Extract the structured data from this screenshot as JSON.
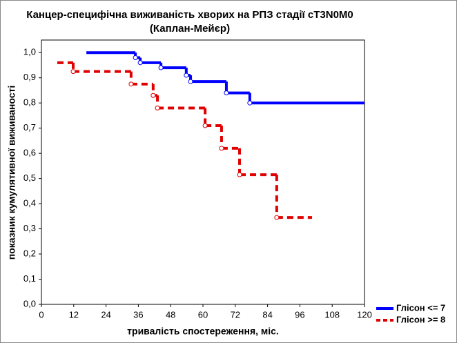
{
  "chart_data": {
    "type": "step",
    "title": "Канцер-специфічна виживаність хворих на РПЗ стадії cT3N0M0",
    "subtitle": "(Каплан-Мейєр)",
    "x_label": "тривалість спостереження, міс.",
    "y_label": "показник кумулятивної виживаності",
    "xlim": [
      0,
      120
    ],
    "ylim": [
      0,
      1.05
    ],
    "xticks": [
      0,
      12,
      24,
      36,
      48,
      60,
      72,
      84,
      96,
      108,
      120
    ],
    "yticks": [
      {
        "value": 0,
        "label": "0,0"
      },
      {
        "value": 0.1,
        "label": "0,1"
      },
      {
        "value": 0.2,
        "label": "0,2"
      },
      {
        "value": 0.3,
        "label": "0,3"
      },
      {
        "value": 0.4,
        "label": "0,4"
      },
      {
        "value": 0.5,
        "label": "0,5"
      },
      {
        "value": 0.6,
        "label": "0,6"
      },
      {
        "value": 0.7,
        "label": "0,7"
      },
      {
        "value": 0.8,
        "label": "0,8"
      },
      {
        "value": 0.9,
        "label": "0,9"
      },
      {
        "value": 1,
        "label": "1,0"
      }
    ],
    "series": [
      {
        "name": "Глісон <= 7",
        "color": "#0000ff",
        "dash": false,
        "x": [
          16.7,
          34.9,
          36.7,
          44.4,
          53.8,
          55.4,
          68.7,
          77.4,
          120
        ],
        "values": [
          1.0,
          0.98,
          0.96,
          0.94,
          0.91,
          0.885,
          0.84,
          0.8,
          0.8
        ]
      },
      {
        "name": "Глісон >= 8",
        "color": "#e00000",
        "dash": true,
        "x": [
          5.9,
          11.8,
          33.3,
          41.5,
          43.1,
          60.8,
          66.9,
          73.6,
          87.4,
          100.5
        ],
        "values": [
          0.96,
          0.925,
          0.875,
          0.83,
          0.78,
          0.71,
          0.62,
          0.515,
          0.345,
          0.345
        ]
      }
    ]
  }
}
